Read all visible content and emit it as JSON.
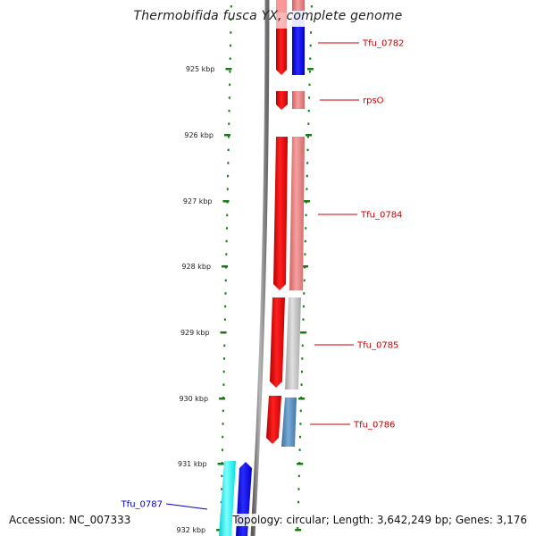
{
  "title": "Thermobifida fusca YX, complete genome",
  "footer": {
    "accession": "Accession: NC_007333",
    "summary": "Topology: circular; Length: 3,642,249 bp; Genes: 3,176"
  },
  "ticks": [
    "925 kbp",
    "926 kbp",
    "927 kbp",
    "928 kbp",
    "929 kbp",
    "930 kbp",
    "931 kbp",
    "932 kbp"
  ],
  "genes": [
    {
      "name": "Tfu_0782",
      "strand": "forward",
      "color": "#cc0000"
    },
    {
      "name": "rpsO",
      "strand": "forward",
      "color": "#cc0000"
    },
    {
      "name": "Tfu_0784",
      "strand": "forward",
      "color": "#cc0000"
    },
    {
      "name": "Tfu_0785",
      "strand": "forward",
      "color": "#cc0000"
    },
    {
      "name": "Tfu_0786",
      "strand": "forward",
      "color": "#cc0000"
    },
    {
      "name": "Tfu_0787",
      "strand": "reverse",
      "color": "#0000cc"
    }
  ],
  "colors": {
    "forward_strand": "#ff0000",
    "reverse_strand_cyan": "#00ffff",
    "reverse_strand_blue": "#0000ff",
    "backbone": "#808080",
    "tick": "#1a7a1a",
    "track_blue": "#0000ff",
    "track_pink": "#e87878",
    "track_grey": "#bdbdbd",
    "track_steelblue": "#4f86b8"
  }
}
